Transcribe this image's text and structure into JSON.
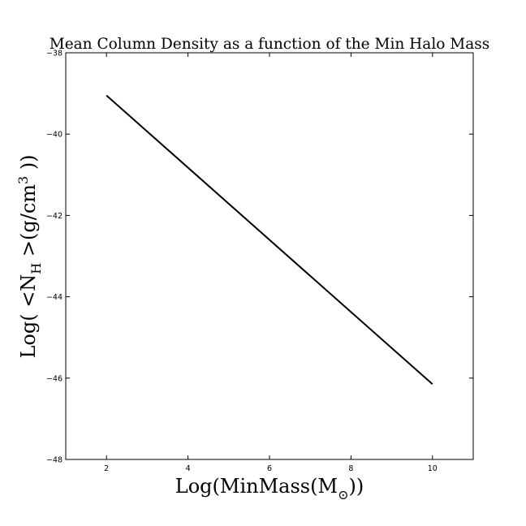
{
  "chart_data": {
    "type": "line",
    "title": "Mean Column Density as a function of the Min Halo Mass",
    "xlabel": {
      "pre": "Log(MinMass(M",
      "sub": "⊙",
      "post": "))"
    },
    "ylabel": {
      "pre": "Log( <N",
      "sub": "H",
      "mid": " >(g/cm",
      "sup": "3",
      "post": " ))"
    },
    "xlim": [
      1,
      11
    ],
    "ylim": [
      -48,
      -38
    ],
    "xticks": [
      2,
      4,
      6,
      8,
      10
    ],
    "yticks": [
      -48,
      -46,
      -44,
      -42,
      -40,
      -38
    ],
    "xtick_labels": [
      "2",
      "4",
      "6",
      "8",
      "10"
    ],
    "ytick_labels": [
      "−48",
      "−46",
      "−44",
      "−42",
      "−40",
      "−38"
    ],
    "grid": false,
    "series": [
      {
        "color": "#000000",
        "x": [
          2,
          10
        ],
        "y": [
          -39.05,
          -46.15
        ]
      }
    ]
  }
}
